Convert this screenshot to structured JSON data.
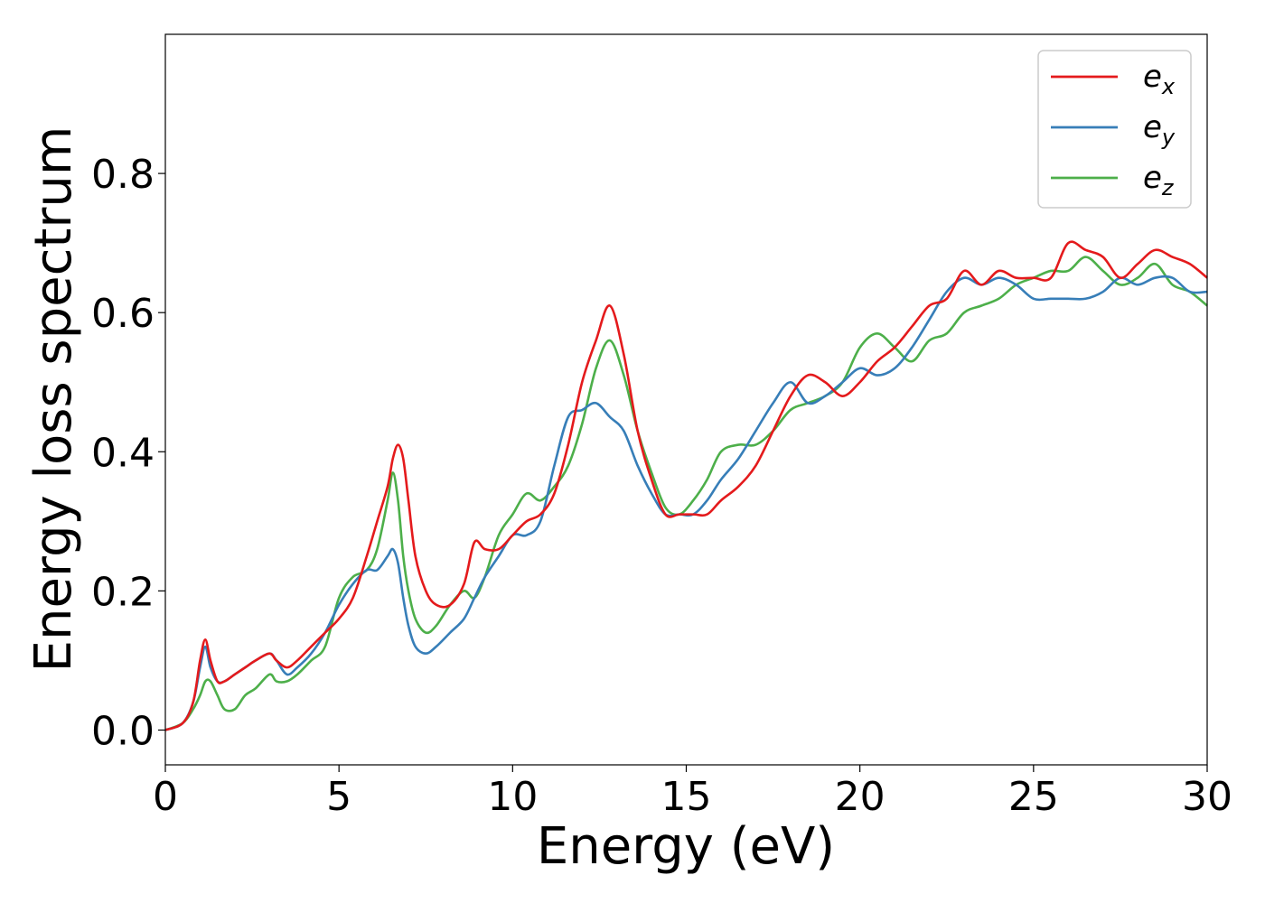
{
  "chart_data": {
    "type": "line",
    "xlabel": "Energy (eV)",
    "ylabel": "Energy loss spectrum",
    "xlim": [
      0,
      30
    ],
    "ylim": [
      -0.05,
      1.0
    ],
    "x_ticks": [
      0,
      5,
      10,
      15,
      20,
      25,
      30
    ],
    "x_tick_labels": [
      "0",
      "5",
      "10",
      "15",
      "20",
      "25",
      "30"
    ],
    "y_ticks": [
      0.0,
      0.2,
      0.4,
      0.6,
      0.8
    ],
    "y_tick_labels": [
      "0.0",
      "0.2",
      "0.4",
      "0.6",
      "0.8"
    ],
    "grid": false,
    "legend_position": "top-right",
    "series": [
      {
        "name": "e_x",
        "label_base": "e",
        "label_sub": "x",
        "color": "#e41a1c",
        "x": [
          0,
          0.5,
          0.8,
          1.0,
          1.15,
          1.3,
          1.5,
          1.7,
          2.0,
          2.3,
          2.6,
          3.0,
          3.2,
          3.5,
          3.8,
          4.2,
          4.6,
          5.0,
          5.4,
          5.8,
          6.1,
          6.4,
          6.55,
          6.7,
          6.85,
          7.0,
          7.2,
          7.5,
          7.8,
          8.2,
          8.6,
          8.9,
          9.2,
          9.6,
          10.0,
          10.4,
          10.8,
          11.2,
          11.6,
          12.0,
          12.4,
          12.8,
          13.2,
          13.6,
          14.0,
          14.4,
          14.8,
          15.2,
          15.6,
          16.0,
          16.5,
          17.0,
          17.5,
          18.0,
          18.5,
          19.0,
          19.5,
          20.0,
          20.5,
          21.0,
          21.5,
          22.0,
          22.5,
          23.0,
          23.5,
          24.0,
          24.5,
          25.0,
          25.5,
          26.0,
          26.5,
          27.0,
          27.5,
          28.0,
          28.5,
          29.0,
          29.5,
          30.0
        ],
        "values": [
          0.0,
          0.01,
          0.04,
          0.1,
          0.13,
          0.1,
          0.07,
          0.07,
          0.08,
          0.09,
          0.1,
          0.11,
          0.1,
          0.09,
          0.1,
          0.12,
          0.14,
          0.16,
          0.19,
          0.25,
          0.3,
          0.35,
          0.39,
          0.41,
          0.39,
          0.33,
          0.25,
          0.2,
          0.18,
          0.18,
          0.21,
          0.27,
          0.26,
          0.26,
          0.28,
          0.3,
          0.31,
          0.34,
          0.41,
          0.5,
          0.56,
          0.61,
          0.54,
          0.43,
          0.36,
          0.31,
          0.31,
          0.31,
          0.31,
          0.33,
          0.35,
          0.38,
          0.43,
          0.48,
          0.51,
          0.5,
          0.48,
          0.5,
          0.53,
          0.55,
          0.58,
          0.61,
          0.62,
          0.66,
          0.64,
          0.66,
          0.65,
          0.65,
          0.65,
          0.7,
          0.69,
          0.68,
          0.65,
          0.67,
          0.69,
          0.68,
          0.67,
          0.65
        ]
      },
      {
        "name": "e_y",
        "label_base": "e",
        "label_sub": "y",
        "color": "#377eb8",
        "x": [
          0,
          0.5,
          0.8,
          1.0,
          1.15,
          1.3,
          1.5,
          1.7,
          2.0,
          2.3,
          2.6,
          3.0,
          3.2,
          3.5,
          3.8,
          4.2,
          4.6,
          5.0,
          5.4,
          5.8,
          6.1,
          6.4,
          6.55,
          6.7,
          6.85,
          7.0,
          7.2,
          7.5,
          7.8,
          8.2,
          8.6,
          8.9,
          9.2,
          9.6,
          10.0,
          10.4,
          10.8,
          11.2,
          11.6,
          12.0,
          12.4,
          12.8,
          13.2,
          13.6,
          14.0,
          14.4,
          14.8,
          15.2,
          15.6,
          16.0,
          16.5,
          17.0,
          17.5,
          18.0,
          18.5,
          19.0,
          19.5,
          20.0,
          20.5,
          21.0,
          21.5,
          22.0,
          22.5,
          23.0,
          23.5,
          24.0,
          24.5,
          25.0,
          25.5,
          26.0,
          26.5,
          27.0,
          27.5,
          28.0,
          28.5,
          29.0,
          29.5,
          30.0
        ],
        "values": [
          0.0,
          0.01,
          0.04,
          0.09,
          0.12,
          0.09,
          0.07,
          0.07,
          0.08,
          0.09,
          0.1,
          0.11,
          0.1,
          0.08,
          0.09,
          0.11,
          0.14,
          0.18,
          0.21,
          0.23,
          0.23,
          0.25,
          0.26,
          0.24,
          0.19,
          0.15,
          0.12,
          0.11,
          0.12,
          0.14,
          0.16,
          0.19,
          0.22,
          0.25,
          0.28,
          0.28,
          0.3,
          0.38,
          0.45,
          0.46,
          0.47,
          0.45,
          0.43,
          0.38,
          0.34,
          0.31,
          0.31,
          0.31,
          0.33,
          0.36,
          0.39,
          0.43,
          0.47,
          0.5,
          0.47,
          0.48,
          0.5,
          0.52,
          0.51,
          0.52,
          0.55,
          0.59,
          0.63,
          0.65,
          0.64,
          0.65,
          0.64,
          0.62,
          0.62,
          0.62,
          0.62,
          0.63,
          0.65,
          0.64,
          0.65,
          0.65,
          0.63,
          0.63
        ]
      },
      {
        "name": "e_z",
        "label_base": "e",
        "label_sub": "z",
        "color": "#4daf4a",
        "x": [
          0,
          0.5,
          0.8,
          1.0,
          1.15,
          1.3,
          1.5,
          1.7,
          2.0,
          2.3,
          2.6,
          3.0,
          3.2,
          3.5,
          3.8,
          4.2,
          4.6,
          5.0,
          5.4,
          5.8,
          6.1,
          6.4,
          6.55,
          6.7,
          6.85,
          7.0,
          7.2,
          7.5,
          7.8,
          8.2,
          8.6,
          8.9,
          9.2,
          9.6,
          10.0,
          10.4,
          10.8,
          11.2,
          11.6,
          12.0,
          12.4,
          12.8,
          13.2,
          13.6,
          14.0,
          14.4,
          14.8,
          15.2,
          15.6,
          16.0,
          16.5,
          17.0,
          17.5,
          18.0,
          18.5,
          19.0,
          19.5,
          20.0,
          20.5,
          21.0,
          21.5,
          22.0,
          22.5,
          23.0,
          23.5,
          24.0,
          24.5,
          25.0,
          25.5,
          26.0,
          26.5,
          27.0,
          27.5,
          28.0,
          28.5,
          29.0,
          29.5,
          30.0
        ],
        "values": [
          0.0,
          0.01,
          0.03,
          0.05,
          0.07,
          0.07,
          0.05,
          0.03,
          0.03,
          0.05,
          0.06,
          0.08,
          0.07,
          0.07,
          0.08,
          0.1,
          0.12,
          0.19,
          0.22,
          0.23,
          0.26,
          0.33,
          0.37,
          0.33,
          0.25,
          0.2,
          0.16,
          0.14,
          0.15,
          0.18,
          0.2,
          0.19,
          0.22,
          0.28,
          0.31,
          0.34,
          0.33,
          0.35,
          0.38,
          0.44,
          0.52,
          0.56,
          0.51,
          0.43,
          0.37,
          0.32,
          0.31,
          0.33,
          0.36,
          0.4,
          0.41,
          0.41,
          0.43,
          0.46,
          0.47,
          0.48,
          0.5,
          0.55,
          0.57,
          0.55,
          0.53,
          0.56,
          0.57,
          0.6,
          0.61,
          0.62,
          0.64,
          0.65,
          0.66,
          0.66,
          0.68,
          0.66,
          0.64,
          0.65,
          0.67,
          0.64,
          0.63,
          0.61
        ]
      }
    ]
  }
}
